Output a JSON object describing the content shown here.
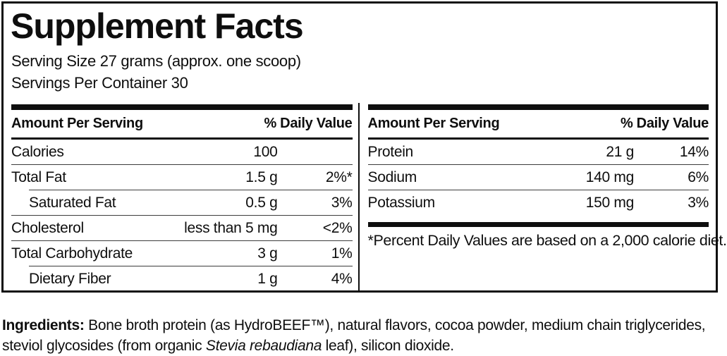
{
  "title": "Supplement Facts",
  "serving": {
    "size_line": "Serving Size 27 grams (approx. one scoop)",
    "container_line": "Servings Per Container 30"
  },
  "left_table": {
    "header": {
      "amount_label": "Amount Per Serving",
      "dv_label": "% Daily Value"
    },
    "rows": [
      {
        "name": "Calories",
        "amount": "100",
        "dv": ""
      },
      {
        "name": "Total Fat",
        "amount": "1.5 g",
        "dv": "2%*"
      },
      {
        "name": "Saturated Fat",
        "amount": "0.5 g",
        "dv": "3%"
      },
      {
        "name": "Cholesterol",
        "amount": "less than 5 mg",
        "dv": "<2%"
      },
      {
        "name": "Total Carbohydrate",
        "amount": "3 g",
        "dv": "1%"
      },
      {
        "name": "Dietary Fiber",
        "amount": "1 g",
        "dv": "4%"
      }
    ]
  },
  "right_table": {
    "header": {
      "amount_label": "Amount Per Serving",
      "dv_label": "% Daily Value"
    },
    "rows": [
      {
        "name": "Protein",
        "amount": "21 g",
        "dv": "14%"
      },
      {
        "name": "Sodium",
        "amount": "140 mg",
        "dv": "6%"
      },
      {
        "name": "Potassium",
        "amount": "150 mg",
        "dv": "3%"
      }
    ],
    "footnote": "*Percent Daily Values are based on a 2,000 calorie diet."
  },
  "ingredients": {
    "label": "Ingredients:",
    "text_before_italic": " Bone broth protein (as HydroBEEF™), natural flavors, cocoa powder, medium chain triglycerides, steviol glycosides (from organic ",
    "italic_species": "Stevia rebaudiana",
    "text_after_italic": " leaf), silicon dioxide."
  },
  "colors": {
    "text": "#0e0e0e",
    "hairline": "#3c3c3c",
    "background": "#ffffff"
  }
}
